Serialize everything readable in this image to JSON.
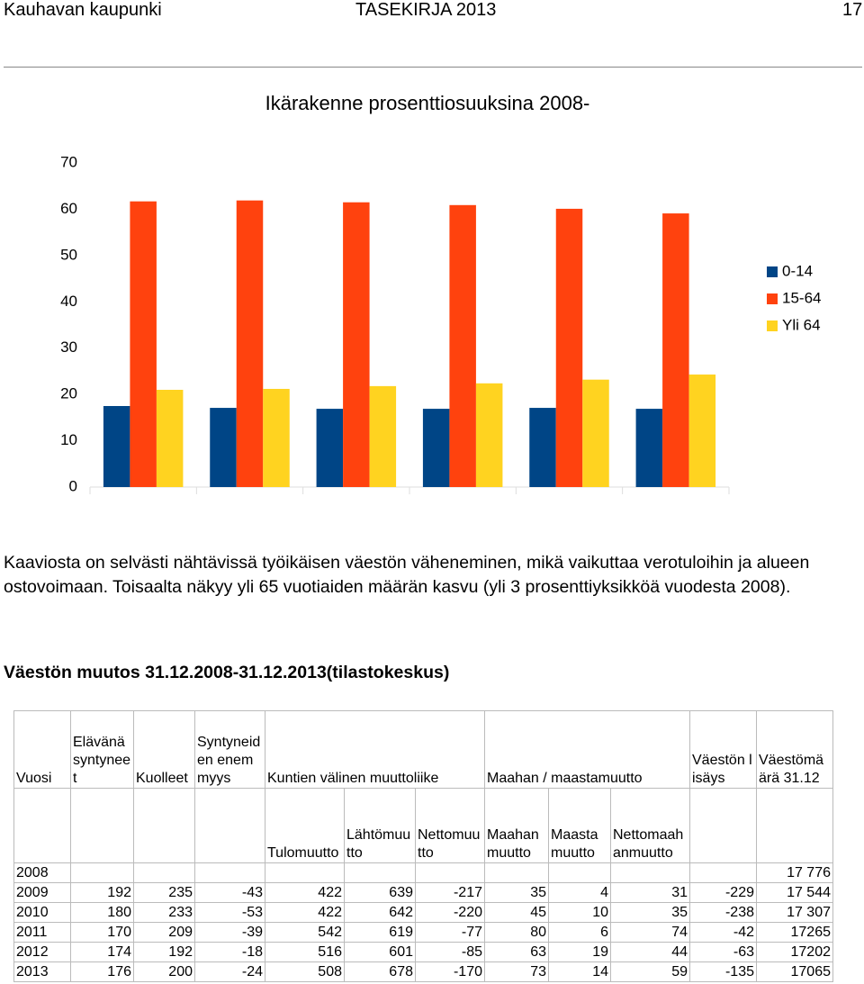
{
  "header": {
    "left": "Kauhavan kaupunki",
    "center": "TASEKIRJA 2013",
    "page": "17"
  },
  "chart_data": {
    "type": "bar",
    "title": "Ikärakenne prosenttiosuuksina 2008-",
    "categories": [
      null,
      null,
      null,
      null,
      null,
      null
    ],
    "series": [
      {
        "name": "0-14",
        "color": "#004586",
        "values": [
          17.5,
          17.1,
          16.9,
          16.9,
          17.1,
          16.9
        ]
      },
      {
        "name": "15-64",
        "color": "#ff420e",
        "values": [
          61.7,
          61.9,
          61.5,
          60.9,
          60.1,
          59.1
        ]
      },
      {
        "name": "Yli 64",
        "color": "#ffd320",
        "values": [
          21.0,
          21.2,
          21.8,
          22.4,
          23.2,
          24.3
        ]
      }
    ],
    "ylim": [
      0,
      70
    ],
    "yticks": [
      0,
      10,
      20,
      30,
      40,
      50,
      60,
      70
    ],
    "grid": false,
    "legend": "right"
  },
  "paragraph": "Kaaviosta on selvästi nähtävissä työikäisen väestön väheneminen, mikä vaikuttaa verotuloihin ja alueen ostovoimaan. Toisaalta näkyy yli 65 vuotiaiden määrän kasvu (yli 3 prosenttiyksikköä vuodesta 2008).",
  "subtitle": "Väestön muutos 31.12.2008-31.12.2013(tilastokeskus)",
  "table": {
    "header1": [
      "Vuosi",
      "Elävänä syntyneet",
      "Kuolleet",
      "Syntyneiden enemmyys",
      "Kuntien välinen muuttoliike",
      "Maahan / maastamuutto",
      "Väestön lisäys",
      "Väestömäärä 31.12"
    ],
    "header2": [
      "Tulomuutto",
      "Lähtömuutto",
      "Nettomuutto",
      "Maahanmuutto",
      "Maastamuutto",
      "Nettomaahanmuutto"
    ],
    "rows": [
      [
        2008,
        null,
        null,
        null,
        null,
        null,
        null,
        null,
        null,
        null,
        null,
        "17 776"
      ],
      [
        2009,
        192,
        235,
        -43,
        422,
        639,
        -217,
        35,
        4,
        31,
        -229,
        "17 544"
      ],
      [
        2010,
        180,
        233,
        -53,
        422,
        642,
        -220,
        45,
        10,
        35,
        -238,
        "17 307"
      ],
      [
        2011,
        170,
        209,
        -39,
        542,
        619,
        -77,
        80,
        6,
        74,
        -42,
        17265
      ],
      [
        2012,
        174,
        192,
        -18,
        516,
        601,
        -85,
        63,
        19,
        44,
        -63,
        17202
      ],
      [
        2013,
        176,
        200,
        -24,
        508,
        678,
        -170,
        73,
        14,
        59,
        -135,
        17065
      ]
    ]
  }
}
